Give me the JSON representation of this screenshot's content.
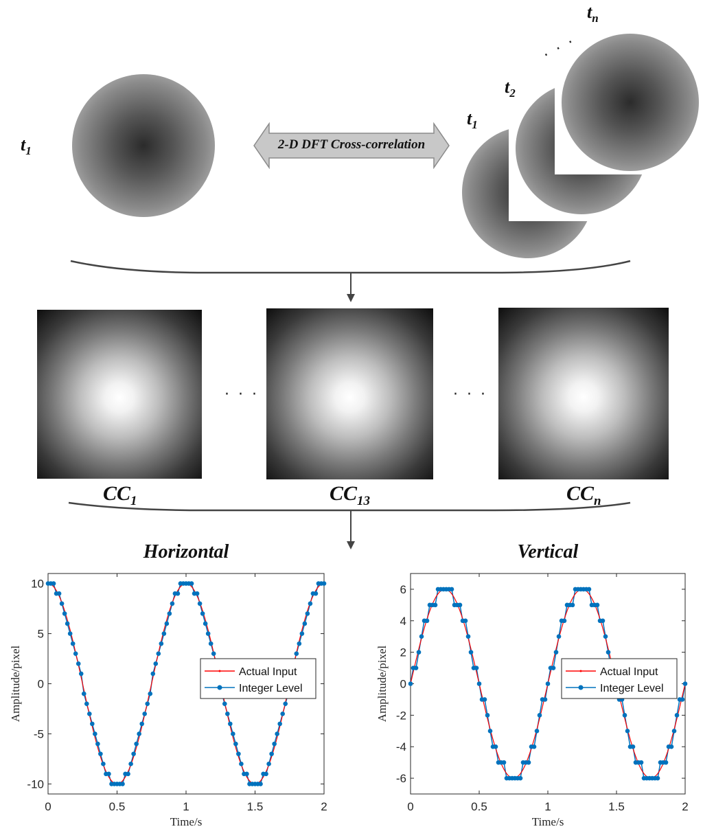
{
  "top": {
    "left_label": {
      "t": "t",
      "sub": "1"
    },
    "arrow_label": "2-D DFT Cross-correlation",
    "stack_labels": [
      {
        "t": "t",
        "sub": "1"
      },
      {
        "t": "t",
        "sub": "2"
      },
      {
        "t": "t",
        "sub": "n"
      }
    ],
    "stack_ellipsis": "· · ·"
  },
  "middle": {
    "labels": [
      {
        "t": "CC",
        "sub": "1"
      },
      {
        "t": "CC",
        "sub": "13"
      },
      {
        "t": "CC",
        "sub": "n"
      }
    ],
    "ellipsis": "· · ·"
  },
  "colors": {
    "actual": "#ff0000",
    "integer": "#0072bd"
  },
  "chart_data": [
    {
      "type": "line",
      "title": "Horizontal",
      "xlabel": "Time/s",
      "ylabel": "Amplitude/pixel",
      "xlim": [
        0,
        2
      ],
      "ylim": [
        -11,
        11
      ],
      "xticks": [
        "0",
        "0.5",
        "1",
        "1.5",
        "2"
      ],
      "yticks": [
        "-10",
        "-5",
        "0",
        "5",
        "10"
      ],
      "ytick_values": [
        -10,
        -5,
        0,
        5,
        10
      ],
      "xtick_values": [
        0,
        0.5,
        1,
        1.5,
        2
      ],
      "function": "10*cos(2*pi*t)",
      "sample_step": 0.02,
      "series": [
        {
          "name": "Actual Input",
          "description": "continuous cosine, amplitude 10, period 1 s"
        },
        {
          "name": "Integer Level",
          "description": "rounded to nearest integer, markers at every 0.02 s"
        }
      ],
      "legend_position": "right-middle"
    },
    {
      "type": "line",
      "title": "Vertical",
      "xlabel": "Time/s",
      "ylabel": "Amplitude/pixel",
      "xlim": [
        0,
        2
      ],
      "ylim": [
        -7,
        7
      ],
      "xticks": [
        "0",
        "0.5",
        "1",
        "1.5",
        "2"
      ],
      "yticks": [
        "-6",
        "-4",
        "-2",
        "0",
        "2",
        "4",
        "6"
      ],
      "ytick_values": [
        -6,
        -4,
        -2,
        0,
        2,
        4,
        6
      ],
      "xtick_values": [
        0,
        0.5,
        1,
        1.5,
        2
      ],
      "function": "6*sin(2*pi*t)",
      "sample_step": 0.02,
      "series": [
        {
          "name": "Actual Input",
          "description": "continuous sine, amplitude 6, period 1 s"
        },
        {
          "name": "Integer Level",
          "description": "rounded to nearest integer, markers at every 0.02 s"
        }
      ],
      "legend_position": "right-middle"
    }
  ]
}
